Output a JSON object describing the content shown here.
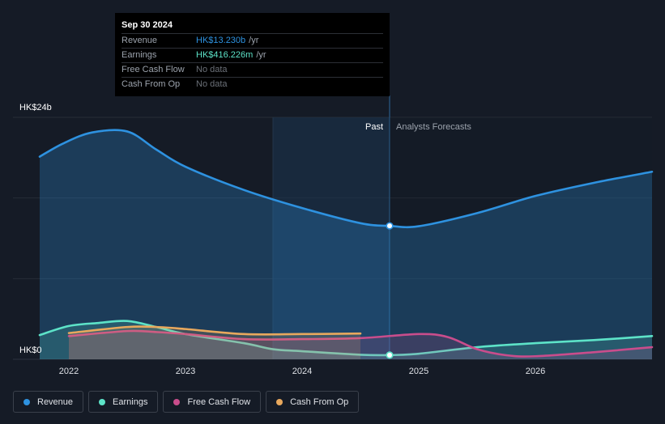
{
  "tooltip": {
    "date": "Sep 30 2024",
    "rows": [
      {
        "label": "Revenue",
        "value": "HK$13.230b",
        "unit": "/yr",
        "color": "#2e92e0"
      },
      {
        "label": "Earnings",
        "value": "HK$416.226m",
        "unit": "/yr",
        "color": "#5de3c8"
      },
      {
        "label": "Free Cash Flow",
        "value": "No data",
        "unit": "",
        "color": "#6b7078"
      },
      {
        "label": "Cash From Op",
        "value": "No data",
        "unit": "",
        "color": "#6b7078"
      }
    ]
  },
  "legend": [
    {
      "label": "Revenue",
      "color": "#2e92e0"
    },
    {
      "label": "Earnings",
      "color": "#5de3c8"
    },
    {
      "label": "Free Cash Flow",
      "color": "#c94d8c"
    },
    {
      "label": "Cash From Op",
      "color": "#e8a85d"
    }
  ],
  "chart_data": {
    "type": "line",
    "title": "",
    "y_top_label": "HK$24b",
    "y_bottom_label": "HK$0",
    "ylim": [
      0,
      24
    ],
    "x_ticks": [
      2022,
      2023,
      2024,
      2025,
      2026
    ],
    "x_tick_labels": [
      "2022",
      "2023",
      "2024",
      "2025",
      "2026"
    ],
    "xlim": [
      2021.75,
      2027.0
    ],
    "past_label": "Past",
    "forecast_label": "Analysts Forecasts",
    "divider_x": 2024.75,
    "highlight_start_x": 2023.75,
    "series": [
      {
        "name": "Revenue",
        "color": "#2e92e0",
        "points": [
          [
            2021.75,
            20.1
          ],
          [
            2021.95,
            21.4
          ],
          [
            2022.2,
            22.5
          ],
          [
            2022.5,
            22.6
          ],
          [
            2022.75,
            20.8
          ],
          [
            2023.0,
            19.1
          ],
          [
            2023.5,
            16.8
          ],
          [
            2024.0,
            15.0
          ],
          [
            2024.5,
            13.5
          ],
          [
            2024.75,
            13.23
          ],
          [
            2025.0,
            13.2
          ],
          [
            2025.5,
            14.5
          ],
          [
            2026.0,
            16.2
          ],
          [
            2026.5,
            17.5
          ],
          [
            2027.0,
            18.6
          ]
        ]
      },
      {
        "name": "Earnings",
        "color": "#5de3c8",
        "points": [
          [
            2021.75,
            2.4
          ],
          [
            2022.0,
            3.3
          ],
          [
            2022.25,
            3.6
          ],
          [
            2022.5,
            3.8
          ],
          [
            2022.75,
            3.2
          ],
          [
            2023.0,
            2.5
          ],
          [
            2023.5,
            1.6
          ],
          [
            2023.75,
            1.0
          ],
          [
            2024.0,
            0.8
          ],
          [
            2024.5,
            0.45
          ],
          [
            2024.75,
            0.416
          ],
          [
            2025.0,
            0.55
          ],
          [
            2025.5,
            1.2
          ],
          [
            2026.0,
            1.6
          ],
          [
            2026.5,
            1.9
          ],
          [
            2027.0,
            2.3
          ]
        ]
      },
      {
        "name": "Free Cash Flow",
        "color": "#c94d8c",
        "points": [
          [
            2022.0,
            2.3
          ],
          [
            2022.5,
            2.8
          ],
          [
            2022.75,
            2.7
          ],
          [
            2023.0,
            2.5
          ],
          [
            2023.5,
            2.0
          ],
          [
            2024.0,
            2.0
          ],
          [
            2024.5,
            2.1
          ],
          [
            2025.0,
            2.5
          ],
          [
            2025.25,
            2.2
          ],
          [
            2025.5,
            1.0
          ],
          [
            2025.75,
            0.4
          ],
          [
            2026.0,
            0.3
          ],
          [
            2026.5,
            0.7
          ],
          [
            2027.0,
            1.2
          ]
        ]
      },
      {
        "name": "Cash From Op",
        "color": "#e8a85d",
        "points": [
          [
            2022.0,
            2.6
          ],
          [
            2022.5,
            3.2
          ],
          [
            2022.75,
            3.2
          ],
          [
            2023.0,
            3.0
          ],
          [
            2023.5,
            2.5
          ],
          [
            2024.0,
            2.5
          ],
          [
            2024.5,
            2.55
          ]
        ]
      }
    ]
  }
}
